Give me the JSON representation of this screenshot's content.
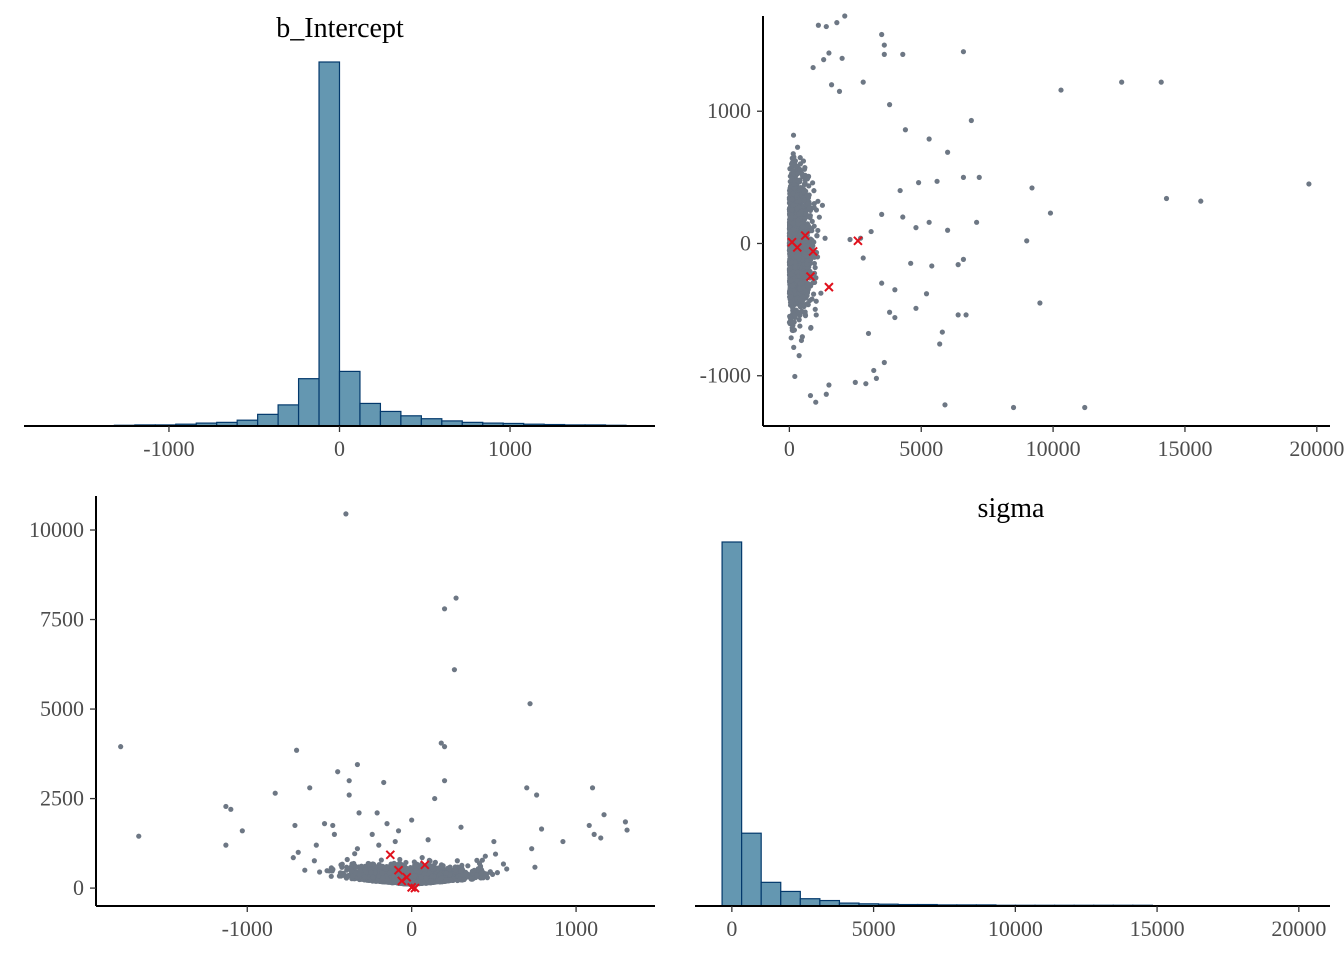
{
  "colors": {
    "bar_fill": "#6497b1",
    "bar_outline": "#03396c",
    "point": "#6d7784",
    "divergent": "#e0101c"
  },
  "chart_data": [
    {
      "type": "bar",
      "panel": "top-left",
      "title": "b_Intercept",
      "xlabel": "",
      "ylabel": "",
      "xlim": [
        -1850,
        1850
      ],
      "xticks": [
        -1000,
        0,
        1000
      ],
      "xtick_labels": [
        "-1000",
        "0",
        "1000"
      ],
      "bin_width": 120,
      "bin_centers": [
        -1740,
        -1620,
        -1500,
        -1380,
        -1260,
        -1140,
        -1020,
        -900,
        -780,
        -660,
        -540,
        -420,
        -300,
        -180,
        -60,
        60,
        180,
        300,
        420,
        540,
        660,
        780,
        900,
        1020,
        1140,
        1260,
        1380,
        1500,
        1620,
        1740
      ],
      "counts": [
        1,
        1,
        1,
        1,
        2,
        3,
        3,
        5,
        8,
        10,
        16,
        32,
        58,
        130,
        1000,
        150,
        62,
        40,
        28,
        20,
        14,
        10,
        8,
        7,
        5,
        4,
        3,
        3,
        2,
        1
      ],
      "grid": false
    },
    {
      "type": "scatter",
      "panel": "top-right",
      "title": "",
      "xlabel": "",
      "ylabel": "",
      "xlim": [
        -1000,
        20500
      ],
      "ylim": [
        -1380,
        1720
      ],
      "xticks": [
        0,
        5000,
        10000,
        15000,
        20000
      ],
      "xtick_labels": [
        "0",
        "5000",
        "10000",
        "15000",
        "20000"
      ],
      "yticks": [
        -1000,
        0,
        1000
      ],
      "ytick_labels": [
        "-1000",
        "0",
        "1000"
      ],
      "points": [
        [
          1100,
          1650
        ],
        [
          1400,
          1640
        ],
        [
          1800,
          1670
        ],
        [
          2100,
          1720
        ],
        [
          3500,
          1580
        ],
        [
          3600,
          1500
        ],
        [
          3600,
          1430
        ],
        [
          4300,
          1430
        ],
        [
          6600,
          1450
        ],
        [
          1500,
          1440
        ],
        [
          2000,
          1400
        ],
        [
          1300,
          1390
        ],
        [
          900,
          1330
        ],
        [
          1600,
          1200
        ],
        [
          1900,
          1150
        ],
        [
          2800,
          1220
        ],
        [
          10300,
          1160
        ],
        [
          12600,
          1220
        ],
        [
          14100,
          1220
        ],
        [
          3800,
          1050
        ],
        [
          4400,
          860
        ],
        [
          5300,
          790
        ],
        [
          6000,
          690
        ],
        [
          6600,
          500
        ],
        [
          7200,
          500
        ],
        [
          4900,
          460
        ],
        [
          5600,
          470
        ],
        [
          4200,
          400
        ],
        [
          9200,
          420
        ],
        [
          9900,
          230
        ],
        [
          14300,
          340
        ],
        [
          15600,
          320
        ],
        [
          19700,
          450
        ],
        [
          6900,
          930
        ],
        [
          3500,
          220
        ],
        [
          4800,
          120
        ],
        [
          6000,
          100
        ],
        [
          7100,
          160
        ],
        [
          5300,
          160
        ],
        [
          4300,
          200
        ],
        [
          9000,
          20
        ],
        [
          3100,
          90
        ],
        [
          2700,
          40
        ],
        [
          2300,
          30
        ],
        [
          2800,
          -110
        ],
        [
          4600,
          -150
        ],
        [
          5400,
          -170
        ],
        [
          6400,
          -160
        ],
        [
          6600,
          -120
        ],
        [
          3500,
          -300
        ],
        [
          4800,
          -490
        ],
        [
          5200,
          -380
        ],
        [
          4000,
          -350
        ],
        [
          3800,
          -520
        ],
        [
          6400,
          -540
        ],
        [
          6700,
          -540
        ],
        [
          4000,
          -560
        ],
        [
          5800,
          -670
        ],
        [
          5700,
          -760
        ],
        [
          3600,
          -900
        ],
        [
          3200,
          -960
        ],
        [
          3300,
          -1020
        ],
        [
          2500,
          -1050
        ],
        [
          1500,
          -1070
        ],
        [
          800,
          -1150
        ],
        [
          1000,
          -1200
        ],
        [
          1400,
          -1140
        ],
        [
          2900,
          -1060
        ],
        [
          5900,
          -1220
        ],
        [
          8500,
          -1240
        ],
        [
          11200,
          -1240
        ],
        [
          9500,
          -450
        ],
        [
          3000,
          -680
        ]
      ],
      "core_cloud": {
        "x_range": [
          0,
          1200
        ],
        "y_range": [
          -500,
          500
        ],
        "approx_points": 1800
      },
      "divergent": [
        [
          2600,
          20
        ],
        [
          1500,
          -330
        ],
        [
          800,
          -250
        ],
        [
          900,
          -60
        ],
        [
          300,
          -30
        ],
        [
          600,
          60
        ],
        [
          100,
          10
        ]
      ],
      "grid": false
    },
    {
      "type": "scatter",
      "panel": "bottom-left",
      "title": "",
      "xlabel": "",
      "ylabel": "",
      "xlim": [
        -1920,
        1480
      ],
      "ylim": [
        -500,
        10950
      ],
      "xticks": [
        -1000,
        0,
        1000
      ],
      "xtick_labels": [
        "-1000",
        "0",
        "1000"
      ],
      "yticks": [
        0,
        2500,
        5000,
        7500,
        10000
      ],
      "ytick_labels": [
        "0",
        "2500",
        "5000",
        "7500",
        "10000"
      ],
      "points": [
        [
          -400,
          10450
        ],
        [
          270,
          8100
        ],
        [
          200,
          7800
        ],
        [
          260,
          6100
        ],
        [
          720,
          5150
        ],
        [
          180,
          4050
        ],
        [
          200,
          3950
        ],
        [
          -1770,
          3950
        ],
        [
          -700,
          3850
        ],
        [
          -330,
          3450
        ],
        [
          -450,
          3250
        ],
        [
          -380,
          3000
        ],
        [
          200,
          3000
        ],
        [
          -170,
          2950
        ],
        [
          -620,
          2800
        ],
        [
          -380,
          2600
        ],
        [
          700,
          2800
        ],
        [
          760,
          2600
        ],
        [
          1100,
          2800
        ],
        [
          -830,
          2650
        ],
        [
          -1130,
          2280
        ],
        [
          -1100,
          2200
        ],
        [
          1170,
          2050
        ],
        [
          -1030,
          1600
        ],
        [
          -710,
          1750
        ],
        [
          -1660,
          1450
        ],
        [
          -1130,
          1200
        ],
        [
          140,
          2500
        ],
        [
          -210,
          2100
        ],
        [
          -320,
          2100
        ],
        [
          -150,
          1800
        ],
        [
          -240,
          1500
        ],
        [
          -480,
          1750
        ],
        [
          -530,
          1800
        ],
        [
          -470,
          1500
        ],
        [
          -330,
          1100
        ],
        [
          -580,
          1200
        ],
        [
          300,
          1700
        ],
        [
          500,
          1300
        ],
        [
          790,
          1650
        ],
        [
          1080,
          1750
        ],
        [
          1300,
          1850
        ],
        [
          1310,
          1620
        ],
        [
          1150,
          1400
        ],
        [
          1110,
          1500
        ],
        [
          920,
          1300
        ],
        [
          730,
          1100
        ],
        [
          510,
          950
        ],
        [
          430,
          780
        ],
        [
          -720,
          850
        ],
        [
          -690,
          1000
        ],
        [
          -650,
          500
        ],
        [
          -560,
          450
        ],
        [
          -430,
          650
        ],
        [
          -200,
          1200
        ],
        [
          -100,
          1300
        ],
        [
          100,
          1350
        ],
        [
          -80,
          1600
        ],
        [
          0,
          1900
        ]
      ],
      "core_cloud": {
        "x_range": [
          -350,
          350
        ],
        "y_range": [
          0,
          900
        ],
        "approx_points": 1800
      },
      "divergent": [
        [
          -130,
          930
        ],
        [
          80,
          650
        ],
        [
          -60,
          200
        ],
        [
          0,
          20
        ],
        [
          -30,
          300
        ],
        [
          20,
          0
        ],
        [
          -80,
          500
        ]
      ],
      "grid": false
    },
    {
      "type": "bar",
      "panel": "bottom-right",
      "title": "sigma",
      "xlabel": "",
      "ylabel": "",
      "xlim": [
        -1300,
        21100
      ],
      "xticks": [
        0,
        5000,
        10000,
        15000,
        20000
      ],
      "xtick_labels": [
        "0",
        "5000",
        "10000",
        "15000",
        "20000"
      ],
      "bin_width": 690,
      "bin_centers": [
        0,
        690,
        1380,
        2070,
        2760,
        3450,
        4140,
        4830,
        5520,
        6210,
        6900,
        7590,
        8280,
        8970,
        9660,
        10350,
        11040,
        11730,
        12420,
        13110,
        13800,
        14490,
        15180,
        15870,
        16560,
        17250,
        17940,
        18630,
        19320,
        20010
      ],
      "counts": [
        1000,
        200,
        65,
        40,
        20,
        15,
        8,
        6,
        5,
        4,
        4,
        3,
        3,
        3,
        2,
        2,
        2,
        2,
        2,
        2,
        2,
        2,
        1,
        1,
        1,
        1,
        1,
        1,
        1,
        1
      ],
      "grid": false
    }
  ]
}
